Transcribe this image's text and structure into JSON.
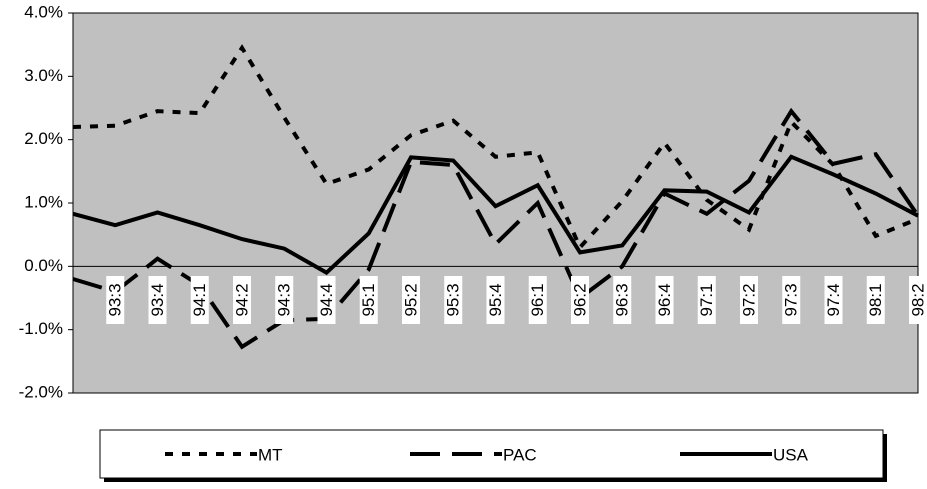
{
  "chart_data": {
    "type": "line",
    "categories": [
      null,
      "93:3",
      "93:4",
      "94:1",
      "94:2",
      "94:3",
      "94:4",
      "95:1",
      "95:2",
      "95:3",
      "95:4",
      "96:1",
      "96:2",
      "96:3",
      "96:4",
      "97:1",
      "97:2",
      "97:3",
      "97:4",
      "98:1",
      "98:2"
    ],
    "series": [
      {
        "name": "MT",
        "color": "#000000",
        "values": [
          2.2,
          2.22,
          2.45,
          2.42,
          3.45,
          2.35,
          1.3,
          1.53,
          2.07,
          2.3,
          1.73,
          1.8,
          0.3,
          1.03,
          1.95,
          1.05,
          0.58,
          2.28,
          1.6,
          0.48,
          0.75
        ]
      },
      {
        "name": "PAC",
        "color": "#000000",
        "values": [
          -0.2,
          -0.4,
          0.12,
          -0.3,
          -1.27,
          -0.85,
          -0.83,
          -0.05,
          1.65,
          1.6,
          0.35,
          1.0,
          -0.5,
          0.0,
          1.15,
          0.83,
          1.35,
          2.45,
          1.62,
          1.77,
          0.8
        ]
      },
      {
        "name": "USA",
        "color": "#000000",
        "values": [
          0.83,
          0.65,
          0.85,
          0.65,
          0.43,
          0.28,
          -0.1,
          0.52,
          1.72,
          1.67,
          0.95,
          1.28,
          0.22,
          0.33,
          1.2,
          1.18,
          0.85,
          1.73,
          1.45,
          1.15,
          0.8
        ]
      }
    ],
    "ylim": [
      -2,
      4
    ],
    "yticks": [
      {
        "value": -2,
        "label": "-2.0%"
      },
      {
        "value": -1,
        "label": "-1.0%"
      },
      {
        "value": 0,
        "label": "0.0%"
      },
      {
        "value": 1,
        "label": "1.0%"
      },
      {
        "value": 2,
        "label": "2.0%"
      },
      {
        "value": 3,
        "label": "3.0%"
      },
      {
        "value": 4,
        "label": "4.0%"
      }
    ],
    "plot_background": "#c0c0c0",
    "legend": "bottom"
  }
}
